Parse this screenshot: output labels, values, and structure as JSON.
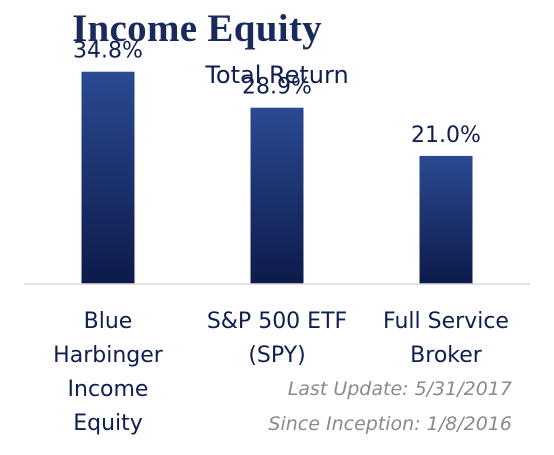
{
  "chart_data": {
    "type": "bar",
    "title": "Income Equity",
    "subtitle": "Total Return",
    "categories": [
      "Blue Harbinger Income Equity",
      "S&P 500 ETF (SPY)",
      "Full Service Broker"
    ],
    "category_lines": [
      [
        "Blue",
        "Harbinger",
        "Income",
        "Equity"
      ],
      [
        "S&P 500 ETF",
        "(SPY)"
      ],
      [
        "Full Service",
        "Broker"
      ]
    ],
    "values": [
      34.8,
      28.9,
      21.0
    ],
    "data_labels": [
      "34.8%",
      "28.9%",
      "21.0%"
    ],
    "ylim": [
      0,
      40
    ],
    "grid": false,
    "legend": "none",
    "colors": {
      "bar_top": "#2b4a92",
      "bar_bottom": "#0d1a4a",
      "axis": "#d9d9d9",
      "label": "#0f1f4f",
      "title": "#1b2a5c"
    }
  },
  "footnotes": {
    "last_update": "Last Update: 5/31/2017",
    "since_inception": "Since Inception: 1/8/2016"
  }
}
